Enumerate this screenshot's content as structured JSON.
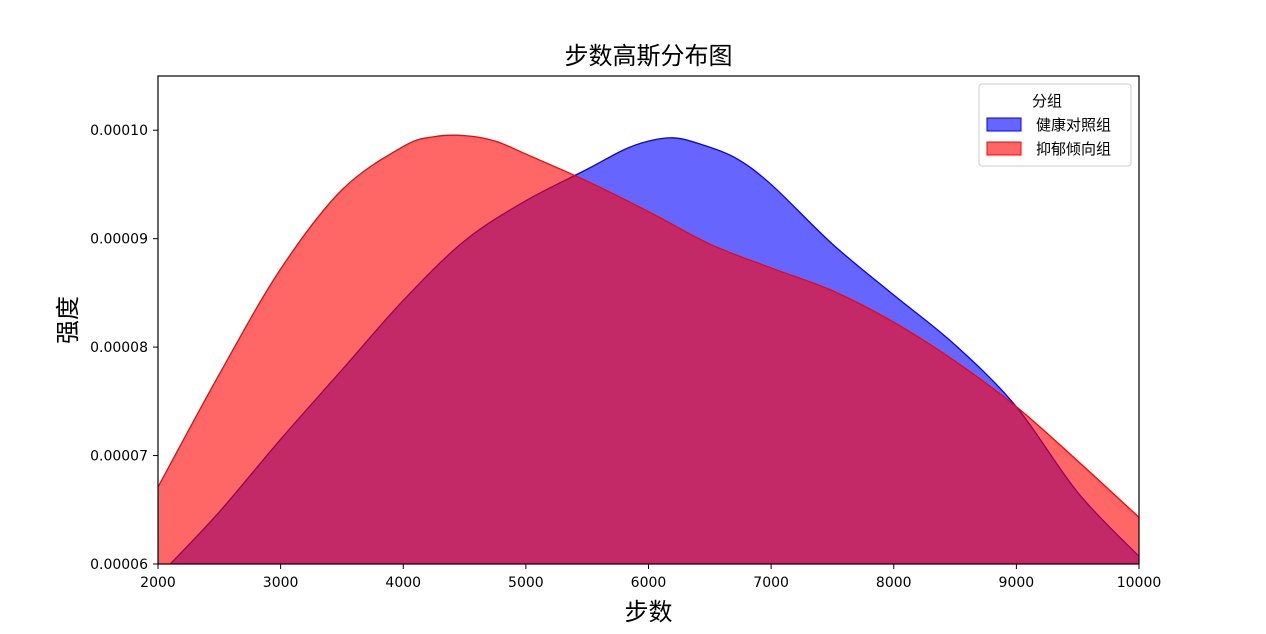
{
  "chart_data": {
    "type": "area",
    "title": "步数高斯分布图",
    "xlabel": "步数",
    "ylabel": "强度",
    "xlim": [
      2000,
      10000
    ],
    "ylim": [
      6e-05,
      0.000105
    ],
    "xticks": [
      2000,
      3000,
      4000,
      5000,
      6000,
      7000,
      8000,
      9000,
      10000
    ],
    "xtick_labels": [
      "2000",
      "3000",
      "4000",
      "5000",
      "6000",
      "7000",
      "8000",
      "9000",
      "10000"
    ],
    "yticks": [
      6e-05,
      7e-05,
      8e-05,
      9e-05,
      0.0001
    ],
    "ytick_labels": [
      "0.00006",
      "0.00007",
      "0.00008",
      "0.00009",
      "0.00010"
    ],
    "grid": false,
    "legend": {
      "title": "分组",
      "placement": "top-right"
    },
    "series": [
      {
        "name": "健康对照组",
        "color": "#0000ff",
        "fill_opacity": 0.6,
        "x": [
          2100,
          2500,
          3000,
          3500,
          4000,
          4500,
          5000,
          5500,
          5800,
          6000,
          6200,
          6400,
          6700,
          7000,
          7500,
          8000,
          8500,
          9000,
          9500,
          10000
        ],
        "y": [
          6e-05,
          6.48e-05,
          7.15e-05,
          7.79e-05,
          8.43e-05,
          8.98e-05,
          9.35e-05,
          9.64e-05,
          9.82e-05,
          9.9e-05,
          9.93e-05,
          9.88e-05,
          9.75e-05,
          9.5e-05,
          8.95e-05,
          8.48e-05,
          8.02e-05,
          7.45e-05,
          6.66e-05,
          6.07e-05
        ]
      },
      {
        "name": "抑郁倾向组",
        "color": "#ff0000",
        "fill_opacity": 0.6,
        "x": [
          2000,
          2500,
          3000,
          3500,
          4000,
          4250,
          4500,
          4750,
          5000,
          5500,
          6000,
          6500,
          7000,
          7500,
          8000,
          8500,
          9000,
          9500,
          10000
        ],
        "y": [
          6.71e-05,
          7.75e-05,
          8.72e-05,
          9.45e-05,
          9.85e-05,
          9.94e-05,
          9.95e-05,
          9.9e-05,
          9.78e-05,
          9.53e-05,
          9.25e-05,
          8.95e-05,
          8.73e-05,
          8.52e-05,
          8.23e-05,
          7.87e-05,
          7.45e-05,
          6.95e-05,
          6.43e-05
        ]
      }
    ]
  }
}
